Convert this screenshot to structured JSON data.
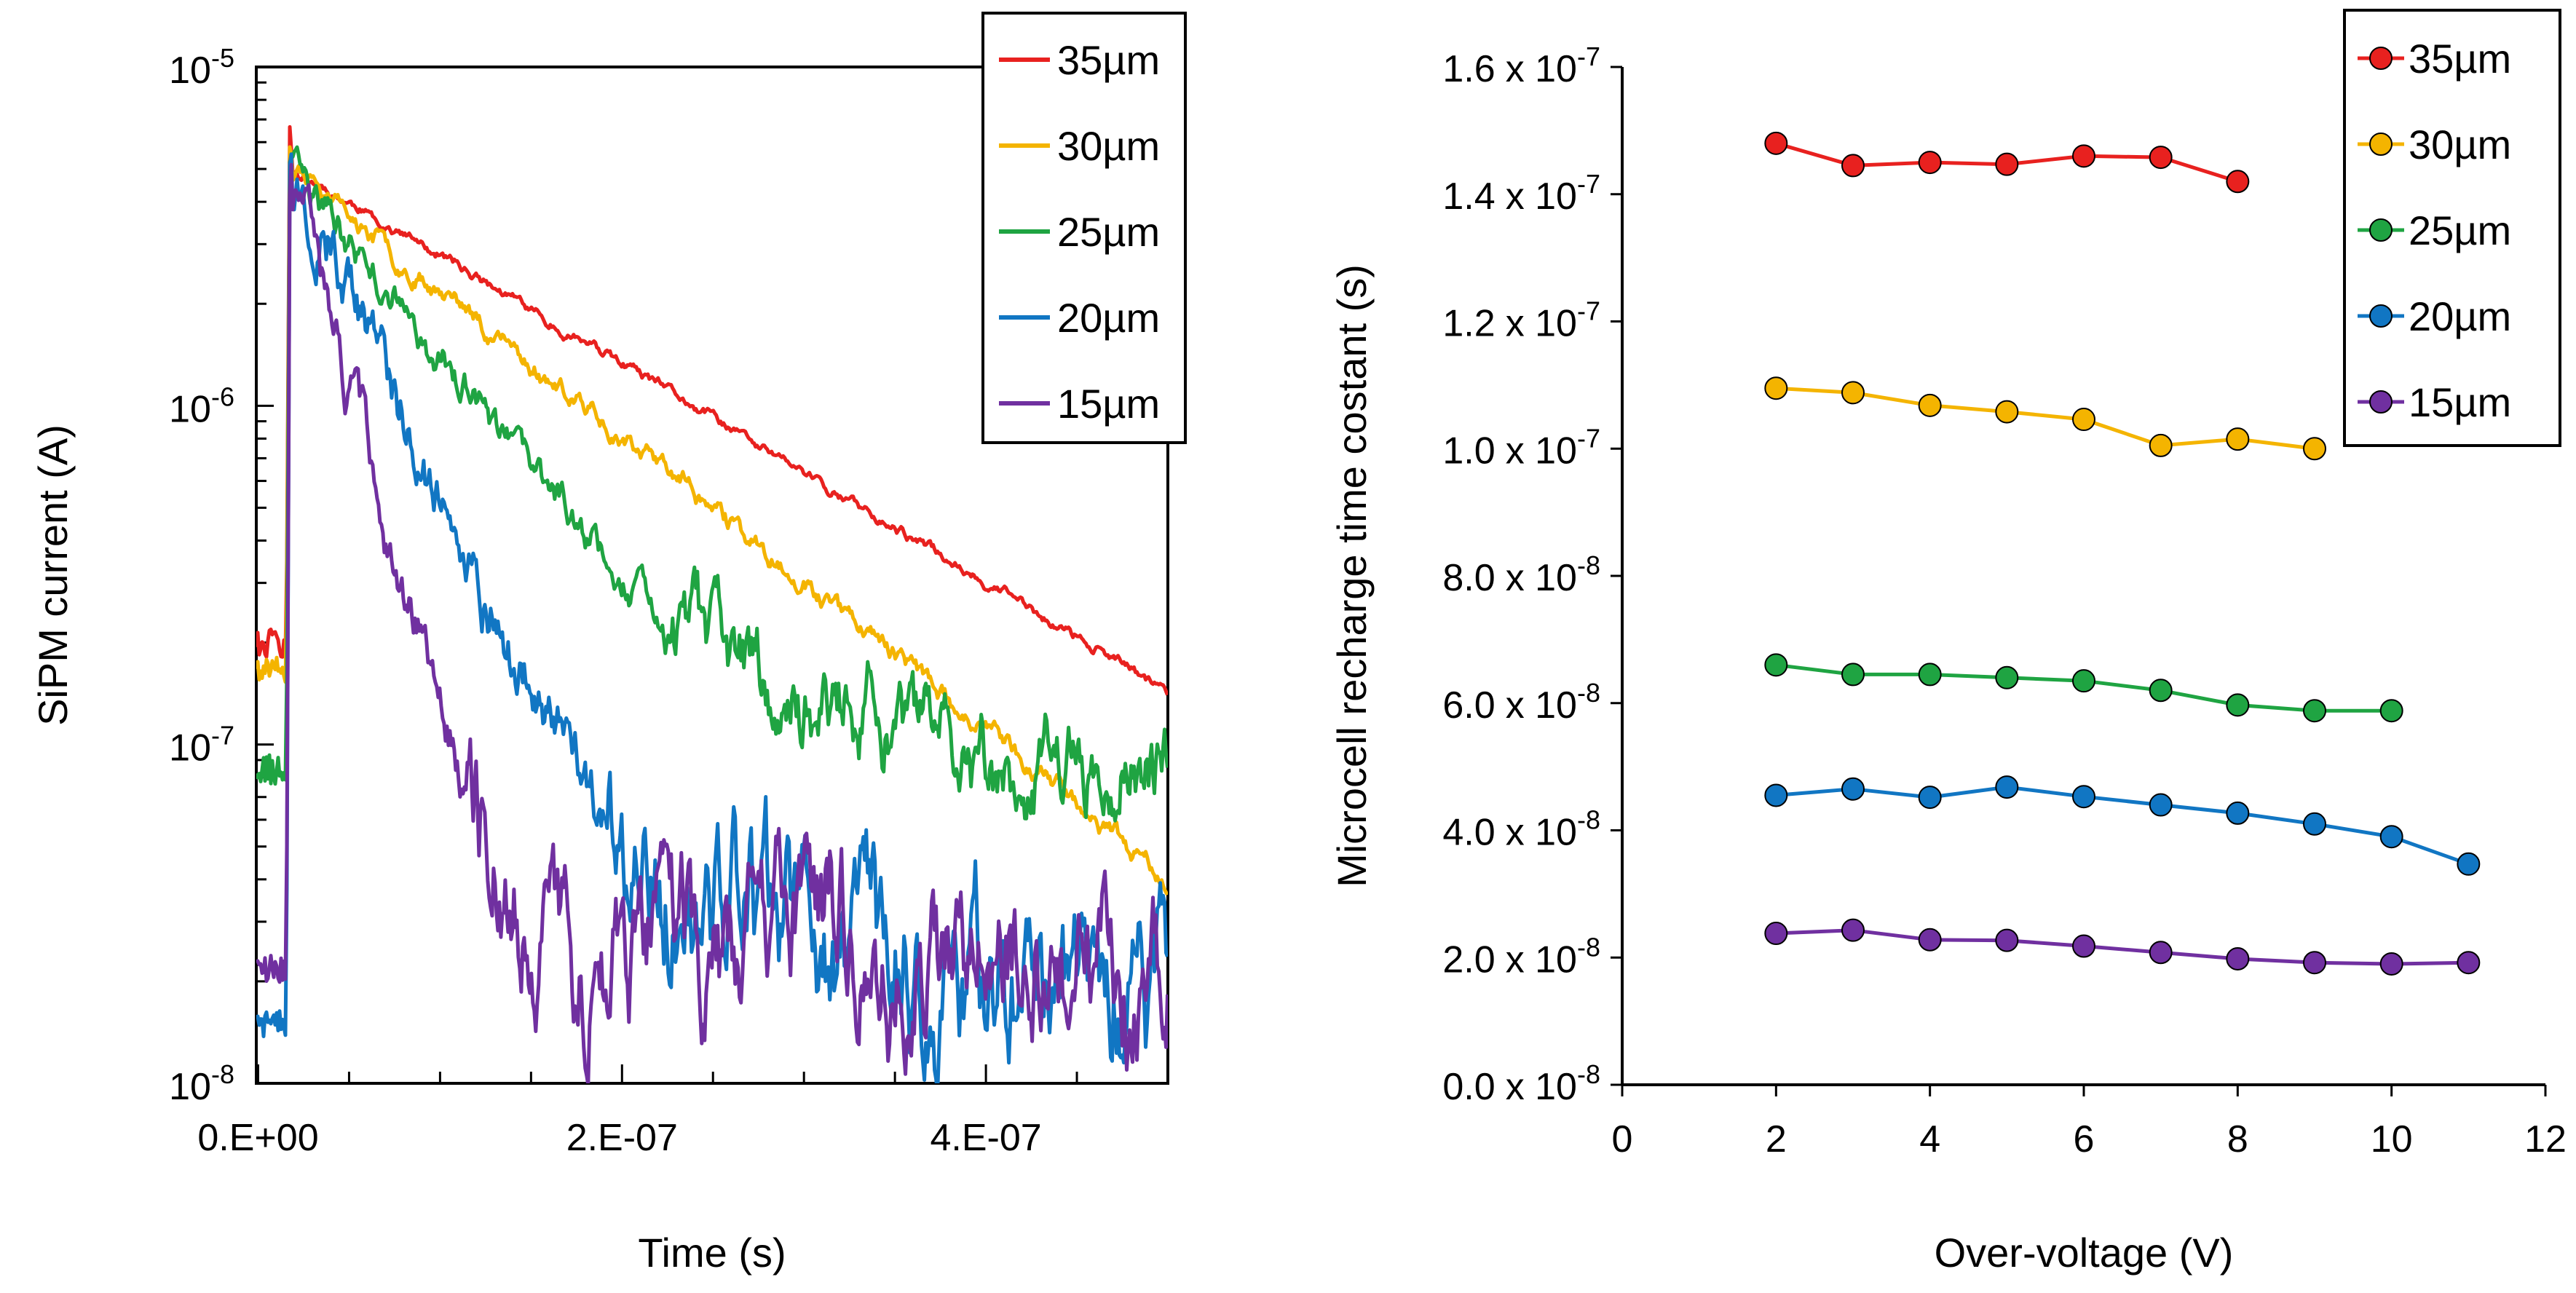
{
  "chart_data": [
    {
      "type": "line",
      "panel": "left",
      "yscale": "log",
      "xlabel": "Time (s)",
      "ylabel": "SiPM current (A)",
      "xlim": [
        -1e-09,
        5e-07
      ],
      "ylim": [
        1e-08,
        1e-05
      ],
      "xticks": [
        {
          "value": 0,
          "label": "0.E+00"
        },
        {
          "value": 2e-07,
          "label": "2.E-07"
        },
        {
          "value": 4e-07,
          "label": "4.E-07"
        }
      ],
      "yticks": [
        {
          "value": 1e-05,
          "base": "10",
          "exp": "-5"
        },
        {
          "value": 1e-06,
          "base": "10",
          "exp": "-6"
        },
        {
          "value": 1e-07,
          "base": "10",
          "exp": "-7"
        },
        {
          "value": 1e-08,
          "base": "10",
          "exp": "-8"
        }
      ],
      "legend_position": "top-right",
      "series": [
        {
          "name": "35µm",
          "color": "#e8211f",
          "baseline": 2e-07,
          "peak": 8e-06,
          "start": 5e-06,
          "tau": 1.36e-07,
          "floor": 0,
          "noise": 0.02,
          "seed": 11
        },
        {
          "name": "30µm",
          "color": "#f4b400",
          "baseline": 1.65e-07,
          "peak": 7e-06,
          "start": 5e-06,
          "tau": 1e-07,
          "floor": 0,
          "noise": 0.04,
          "seed": 23
        },
        {
          "name": "25µm",
          "color": "#1fa442",
          "baseline": 8.5e-08,
          "peak": 6.5e-06,
          "start": 5e-06,
          "tau": 6e-08,
          "floor": 8.5e-08,
          "noise": 0.07,
          "seed": 37
        },
        {
          "name": "20µm",
          "color": "#1176c3",
          "baseline": 1.5e-08,
          "peak": 7e-06,
          "start": 5e-06,
          "tau": 3.6e-08,
          "floor": 2e-08,
          "noise": 0.12,
          "seed": 51
        },
        {
          "name": "15µm",
          "color": "#7030a0",
          "baseline": 2.2e-08,
          "peak": 5.5e-06,
          "start": 5e-06,
          "tau": 2.1e-08,
          "floor": 2.6e-08,
          "noise": 0.11,
          "seed": 67
        }
      ]
    },
    {
      "type": "line",
      "panel": "right",
      "markers": true,
      "xlabel": "Over-voltage (V)",
      "ylabel": "Microcell recharge time costant (s)",
      "xlim": [
        0,
        12
      ],
      "ylim": [
        0,
        1.6e-07
      ],
      "xticks": [
        "0",
        "2",
        "4",
        "6",
        "8",
        "10",
        "12"
      ],
      "yticks": [
        {
          "value": 0,
          "mantissa": "0.0",
          "base": "x 10",
          "exp": "-8"
        },
        {
          "value": 2e-08,
          "mantissa": "2.0",
          "base": "x 10",
          "exp": "-8"
        },
        {
          "value": 4e-08,
          "mantissa": "4.0",
          "base": "x 10",
          "exp": "-8"
        },
        {
          "value": 6e-08,
          "mantissa": "6.0",
          "base": "x 10",
          "exp": "-8"
        },
        {
          "value": 8e-08,
          "mantissa": "8.0",
          "base": "x 10",
          "exp": "-8"
        },
        {
          "value": 1e-07,
          "mantissa": "1.0",
          "base": "x 10",
          "exp": "-7"
        },
        {
          "value": 1.2e-07,
          "mantissa": "1.2",
          "base": "x 10",
          "exp": "-7"
        },
        {
          "value": 1.4e-07,
          "mantissa": "1.4",
          "base": "x 10",
          "exp": "-7"
        },
        {
          "value": 1.6e-07,
          "mantissa": "1.6",
          "base": "x 10",
          "exp": "-7"
        }
      ],
      "legend_position": "top-right",
      "series": [
        {
          "name": "35µm",
          "color": "#e8211f",
          "x": [
            2,
            3,
            4,
            5,
            6,
            7,
            8
          ],
          "values": [
            1.48e-07,
            1.445e-07,
            1.45e-07,
            1.447e-07,
            1.46e-07,
            1.458e-07,
            1.42e-07
          ]
        },
        {
          "name": "30µm",
          "color": "#f4b400",
          "x": [
            2,
            3,
            4,
            5,
            6,
            7,
            8,
            9
          ],
          "values": [
            1.095e-07,
            1.088e-07,
            1.068e-07,
            1.058e-07,
            1.046e-07,
            1.005e-07,
            1.015e-07,
            1e-07
          ]
        },
        {
          "name": "25µm",
          "color": "#1fa442",
          "x": [
            2,
            3,
            4,
            5,
            6,
            7,
            8,
            9,
            10
          ],
          "values": [
            6.6e-08,
            6.45e-08,
            6.45e-08,
            6.4e-08,
            6.35e-08,
            6.2e-08,
            5.97e-08,
            5.88e-08,
            5.88e-08
          ]
        },
        {
          "name": "20µm",
          "color": "#1176c3",
          "x": [
            2,
            3,
            4,
            5,
            6,
            7,
            8,
            9,
            10,
            11
          ],
          "values": [
            4.55e-08,
            4.65e-08,
            4.52e-08,
            4.68e-08,
            4.53e-08,
            4.4e-08,
            4.27e-08,
            4.1e-08,
            3.9e-08,
            3.47e-08
          ]
        },
        {
          "name": "15µm",
          "color": "#7030a0",
          "x": [
            2,
            3,
            4,
            5,
            6,
            7,
            8,
            9,
            10,
            11
          ],
          "values": [
            2.38e-08,
            2.43e-08,
            2.28e-08,
            2.27e-08,
            2.18e-08,
            2.08e-08,
            1.98e-08,
            1.92e-08,
            1.9e-08,
            1.92e-08
          ]
        }
      ]
    }
  ]
}
